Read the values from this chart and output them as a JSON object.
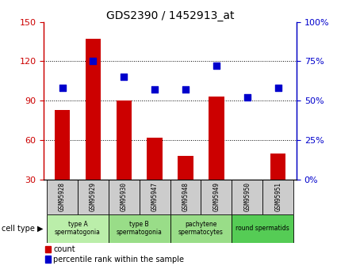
{
  "title": "GDS2390 / 1452913_at",
  "samples": [
    "GSM95928",
    "GSM95929",
    "GSM95930",
    "GSM95947",
    "GSM95948",
    "GSM95949",
    "GSM95950",
    "GSM95951"
  ],
  "counts": [
    83,
    137,
    90,
    62,
    48,
    93,
    30,
    50
  ],
  "percentiles": [
    58,
    75,
    65,
    57,
    57,
    72,
    52,
    58
  ],
  "ylim_left": [
    30,
    150
  ],
  "ylim_right": [
    0,
    100
  ],
  "yticks_left": [
    30,
    60,
    90,
    120,
    150
  ],
  "yticks_right": [
    0,
    25,
    50,
    75,
    100
  ],
  "ytick_labels_right": [
    "0%",
    "25%",
    "50%",
    "75%",
    "100%"
  ],
  "bar_color": "#cc0000",
  "dot_color": "#0000cc",
  "grid_color": "#000000",
  "sample_bg": "#cccccc",
  "groups": [
    {
      "start": 0,
      "end": 1,
      "label1": "type A",
      "label2": "spermatogonia",
      "color": "#bbeeaa"
    },
    {
      "start": 2,
      "end": 3,
      "label1": "type B",
      "label2": "spermatogonia",
      "color": "#99dd88"
    },
    {
      "start": 4,
      "end": 5,
      "label1": "pachytene",
      "label2": "spermatocytes",
      "color": "#99dd88"
    },
    {
      "start": 6,
      "end": 7,
      "label1": "round spermatids",
      "label2": "",
      "color": "#55cc55"
    }
  ],
  "cell_type_label": "cell type",
  "legend_count_label": "count",
  "legend_pct_label": "percentile rank within the sample",
  "bar_width": 0.5,
  "background_color": "#ffffff",
  "tick_label_color_left": "#cc0000",
  "tick_label_color_right": "#0000cc"
}
